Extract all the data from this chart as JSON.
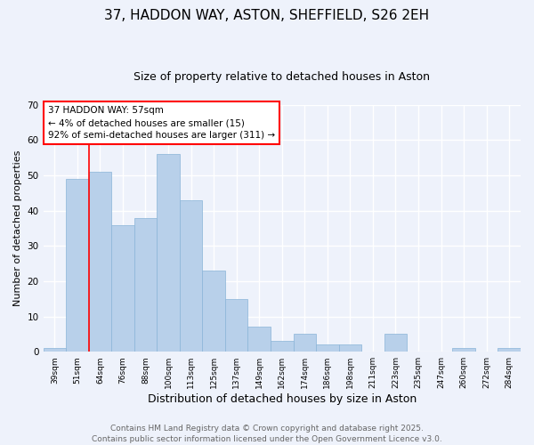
{
  "title": "37, HADDON WAY, ASTON, SHEFFIELD, S26 2EH",
  "subtitle": "Size of property relative to detached houses in Aston",
  "xlabel": "Distribution of detached houses by size in Aston",
  "ylabel": "Number of detached properties",
  "categories": [
    "39sqm",
    "51sqm",
    "64sqm",
    "76sqm",
    "88sqm",
    "100sqm",
    "113sqm",
    "125sqm",
    "137sqm",
    "149sqm",
    "162sqm",
    "174sqm",
    "186sqm",
    "198sqm",
    "211sqm",
    "223sqm",
    "235sqm",
    "247sqm",
    "260sqm",
    "272sqm",
    "284sqm"
  ],
  "values": [
    1,
    49,
    51,
    36,
    38,
    56,
    43,
    23,
    15,
    7,
    3,
    5,
    2,
    2,
    0,
    5,
    0,
    0,
    1,
    0,
    1
  ],
  "bar_color": "#b8d0ea",
  "bar_edge_color": "#8ab4d8",
  "ylim": [
    0,
    70
  ],
  "yticks": [
    0,
    10,
    20,
    30,
    40,
    50,
    60,
    70
  ],
  "red_line_x": 1.5,
  "annotation_title": "37 HADDON WAY: 57sqm",
  "annotation_line1": "← 4% of detached houses are smaller (15)",
  "annotation_line2": "92% of semi-detached houses are larger (311) →",
  "footer_line1": "Contains HM Land Registry data © Crown copyright and database right 2025.",
  "footer_line2": "Contains public sector information licensed under the Open Government Licence v3.0.",
  "background_color": "#eef2fb",
  "plot_background": "#eef2fb",
  "grid_color": "#ffffff",
  "title_fontsize": 11,
  "subtitle_fontsize": 9,
  "xlabel_fontsize": 9,
  "ylabel_fontsize": 8,
  "footer_fontsize": 6.5,
  "annotation_fontsize": 7.5
}
